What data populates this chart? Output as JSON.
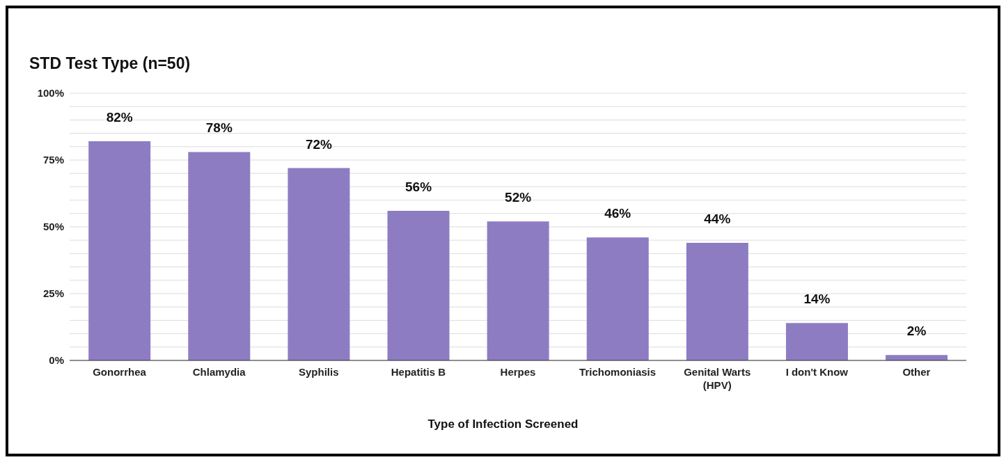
{
  "chart_data": {
    "type": "bar",
    "title": "STD Test Type (n=50)",
    "xlabel": "Type of Infection Screened",
    "categories": [
      "Gonorrhea",
      "Chlamydia",
      "Syphilis",
      "Hepatitis B",
      "Herpes",
      "Trichomoniasis",
      "Genital Warts (HPV)",
      "I don't Know",
      "Other"
    ],
    "values": [
      82,
      78,
      72,
      56,
      52,
      46,
      44,
      14,
      2
    ],
    "value_labels": [
      "82%",
      "78%",
      "72%",
      "56%",
      "52%",
      "46%",
      "44%",
      "14%",
      "2%"
    ],
    "color": "#8e7cc3",
    "ylim": [
      0,
      100
    ],
    "yticks": [
      {
        "value": 0,
        "label": "0%"
      },
      {
        "value": 5,
        "label": null
      },
      {
        "value": 10,
        "label": null
      },
      {
        "value": 15,
        "label": null
      },
      {
        "value": 20,
        "label": null
      },
      {
        "value": 25,
        "label": "25%"
      },
      {
        "value": 30,
        "label": null
      },
      {
        "value": 35,
        "label": null
      },
      {
        "value": 40,
        "label": null
      },
      {
        "value": 45,
        "label": null
      },
      {
        "value": 50,
        "label": "50%"
      },
      {
        "value": 55,
        "label": null
      },
      {
        "value": 60,
        "label": null
      },
      {
        "value": 65,
        "label": null
      },
      {
        "value": 70,
        "label": null
      },
      {
        "value": 75,
        "label": "75%"
      },
      {
        "value": 80,
        "label": null
      },
      {
        "value": 85,
        "label": null
      },
      {
        "value": 90,
        "label": null
      },
      {
        "value": 95,
        "label": null
      },
      {
        "value": 100,
        "label": "100%"
      }
    ],
    "grid": "y",
    "legend": false
  }
}
